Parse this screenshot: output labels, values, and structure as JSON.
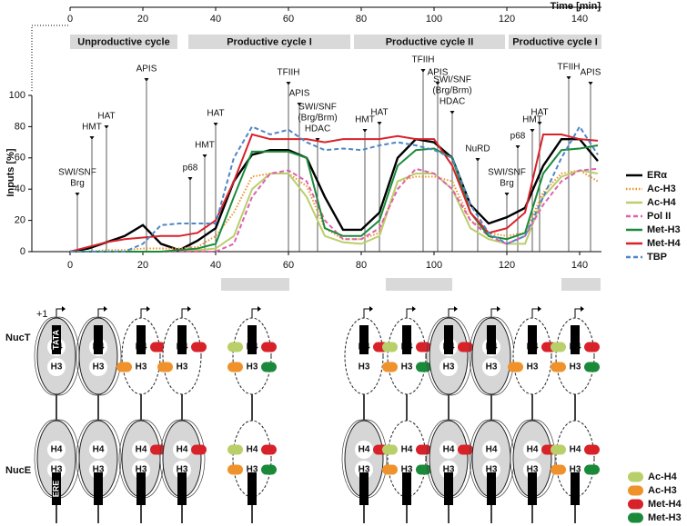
{
  "chart_data": {
    "type": "line",
    "xlabel": "Time [min]",
    "ylabel": "Inputs [%]",
    "xlim": [
      -10.5,
      146
    ],
    "xticks": [
      0,
      20,
      40,
      60,
      80,
      100,
      120,
      140
    ],
    "ylim": [
      0,
      100
    ],
    "yticks": [
      0,
      20,
      40,
      60,
      80,
      100
    ],
    "legend": "right",
    "x": [
      0,
      5,
      10,
      15,
      20,
      25,
      30,
      35,
      40,
      45,
      50,
      55,
      60,
      65,
      70,
      75,
      80,
      85,
      90,
      95,
      100,
      105,
      110,
      115,
      120,
      125,
      130,
      135,
      140,
      145
    ],
    "series": [
      {
        "name": "ERα",
        "color": "#000000",
        "dash": "solid",
        "values": [
          0,
          2,
          6,
          10,
          17,
          5,
          1,
          7,
          15,
          45,
          62,
          65,
          65,
          60,
          35,
          14,
          14,
          25,
          60,
          72,
          70,
          60,
          30,
          18,
          22,
          28,
          55,
          72,
          72,
          58
        ]
      },
      {
        "name": "Ac-H3",
        "color": "#f0922b",
        "dash": "dotted",
        "values": [
          0,
          0,
          1,
          1,
          2,
          2,
          2,
          3,
          10,
          25,
          48,
          50,
          50,
          42,
          15,
          8,
          8,
          12,
          45,
          48,
          48,
          45,
          20,
          12,
          10,
          12,
          38,
          50,
          52,
          45
        ]
      },
      {
        "name": "Ac-H4",
        "color": "#b9cf6a",
        "dash": "solid",
        "values": [
          0,
          0,
          0,
          0,
          0,
          0,
          1,
          1,
          2,
          10,
          40,
          50,
          50,
          35,
          10,
          6,
          5,
          10,
          45,
          50,
          50,
          40,
          15,
          8,
          5,
          5,
          35,
          48,
          52,
          50
        ]
      },
      {
        "name": "Pol II",
        "color": "#e060b0",
        "dash": "dashed",
        "values": [
          0,
          0,
          0,
          0,
          0,
          0,
          0,
          0,
          0,
          5,
          35,
          50,
          52,
          45,
          20,
          8,
          8,
          15,
          40,
          53,
          50,
          40,
          20,
          10,
          5,
          10,
          30,
          45,
          52,
          53
        ]
      },
      {
        "name": "Met-H3",
        "color": "#1a8a3a",
        "dash": "solid",
        "values": [
          0,
          0,
          0,
          0,
          0,
          0,
          1,
          2,
          5,
          35,
          64,
          64,
          64,
          60,
          15,
          10,
          10,
          20,
          55,
          65,
          66,
          60,
          25,
          10,
          8,
          12,
          50,
          65,
          66,
          68
        ]
      },
      {
        "name": "Met-H4",
        "color": "#d8222a",
        "dash": "solid",
        "values": [
          0,
          3,
          6,
          8,
          9,
          10,
          10,
          12,
          20,
          45,
          75,
          72,
          72,
          72,
          70,
          72,
          72,
          72,
          74,
          72,
          72,
          55,
          25,
          12,
          15,
          25,
          75,
          75,
          72,
          71
        ]
      },
      {
        "name": "TBP",
        "color": "#4f86c6",
        "dash": "dashed",
        "values": [
          0,
          0,
          0,
          0,
          5,
          17,
          18,
          18,
          18,
          60,
          80,
          75,
          78,
          70,
          65,
          66,
          65,
          68,
          70,
          68,
          65,
          60,
          30,
          12,
          5,
          10,
          35,
          60,
          80,
          62
        ]
      }
    ],
    "phases": [
      {
        "label": "Unproductive cycle",
        "start": 0,
        "end": 29.5
      },
      {
        "label": "Productive cycle I",
        "start": 32.5,
        "end": 77
      },
      {
        "label": "Productive cycle II",
        "start": 78,
        "end": 119.5
      },
      {
        "label": "Productive cycle I",
        "start": 120.5,
        "end": 146
      }
    ],
    "annotations": [
      {
        "lines": [
          "SWI/SNF",
          "Brg"
        ],
        "x": 2
      },
      {
        "lines": [
          "HMT"
        ],
        "x": 6
      },
      {
        "lines": [
          "HAT"
        ],
        "x": 10
      },
      {
        "lines": [
          "APIS"
        ],
        "x": 21
      },
      {
        "lines": [
          "p68"
        ],
        "x": 33
      },
      {
        "lines": [
          "HMT"
        ],
        "x": 37
      },
      {
        "lines": [
          "HAT"
        ],
        "x": 40
      },
      {
        "lines": [
          "TFIIH"
        ],
        "x": 60
      },
      {
        "lines": [
          "APIS"
        ],
        "x": 63
      },
      {
        "lines": [
          "SWI/SNF",
          "(Brg/Brm)",
          "HDAC"
        ],
        "x": 68
      },
      {
        "lines": [
          "HMT"
        ],
        "x": 81
      },
      {
        "lines": [
          "HAT"
        ],
        "x": 85
      },
      {
        "lines": [
          "TFIIH"
        ],
        "x": 97
      },
      {
        "lines": [
          "APIS"
        ],
        "x": 101
      },
      {
        "lines": [
          "SWI/SNF",
          "(Brg/Brm)",
          "HDAC"
        ],
        "x": 105
      },
      {
        "lines": [
          "NuRD"
        ],
        "x": 112
      },
      {
        "lines": [
          "SWI/SNF",
          "Brg"
        ],
        "x": 120
      },
      {
        "lines": [
          "p68"
        ],
        "x": 123
      },
      {
        "lines": [
          "HMT"
        ],
        "x": 127
      },
      {
        "lines": [
          "HAT"
        ],
        "x": 129
      },
      {
        "lines": [
          "TFIIH"
        ],
        "x": 137
      },
      {
        "lines": [
          "APIS"
        ],
        "x": 143
      }
    ]
  },
  "diagram": {
    "start_site": "+1",
    "nuc_t": "NucT",
    "nuc_e": "NucE",
    "tata": "TATA",
    "ere": "ERE",
    "h4": "H4",
    "h3": "H3"
  }
}
